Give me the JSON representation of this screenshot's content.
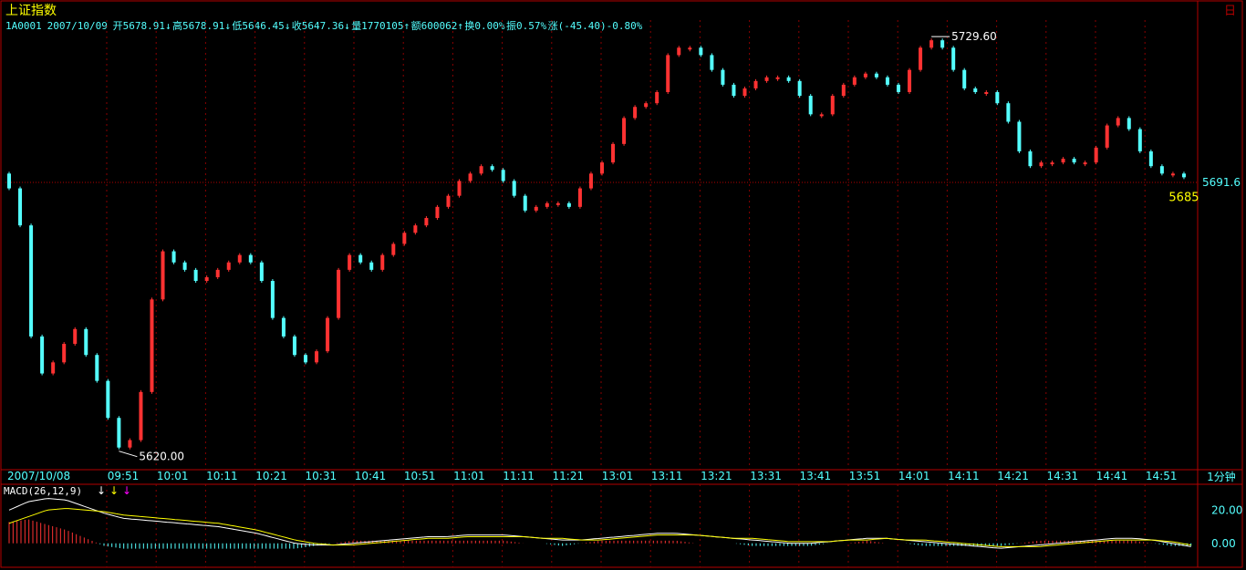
{
  "title": "上证指数",
  "corner_label": "日",
  "info": {
    "code": "1A0001",
    "date": "2007/10/09",
    "open_label": "开",
    "open": "5678.91",
    "high_label": "高",
    "high": "5678.91",
    "low_label": "低",
    "low": "5646.45",
    "close_label": "收",
    "close": "5647.36",
    "volume_label": "量",
    "volume": "1770105",
    "amount_label": "额",
    "amount": "600062",
    "turnover_label": "换",
    "turnover": "0.00%",
    "amplitude_label": "振",
    "amplitude": "0.57%",
    "change_label": "涨",
    "change": "(-45.40)-0.80%"
  },
  "price_chart": {
    "type": "candlestick",
    "high_label": "5729.60",
    "low_label": "5620.00",
    "local_low_label": "5685",
    "reference_price_label": "5691.6",
    "reference_price": 5691.6,
    "ylim": [
      5615,
      5733
    ],
    "closes": [
      5690,
      5680,
      5650,
      5640,
      5643,
      5648,
      5652,
      5645,
      5638,
      5628,
      5620,
      5622,
      5635,
      5660,
      5673,
      5670,
      5668,
      5665,
      5666,
      5668,
      5670,
      5672,
      5670,
      5665,
      5655,
      5650,
      5645,
      5643,
      5646,
      5655,
      5668,
      5672,
      5670,
      5668,
      5672,
      5675,
      5678,
      5680,
      5682,
      5685,
      5688,
      5692,
      5694,
      5696,
      5695,
      5692,
      5688,
      5684,
      5685,
      5686,
      5686,
      5685,
      5690,
      5694,
      5697,
      5702,
      5709,
      5712,
      5713,
      5716,
      5726,
      5728,
      5728,
      5726,
      5722,
      5718,
      5715,
      5717,
      5719,
      5720,
      5720,
      5719,
      5715,
      5710,
      5710,
      5715,
      5718,
      5720,
      5721,
      5720,
      5718,
      5716,
      5722,
      5728,
      5730,
      5728,
      5722,
      5717,
      5716,
      5716,
      5713,
      5708,
      5700,
      5696,
      5697,
      5697,
      5698,
      5697,
      5697,
      5701,
      5707,
      5709,
      5706,
      5700,
      5696,
      5694,
      5694,
      5693
    ],
    "times": [
      "2007/10/08",
      "09:51",
      "10:01",
      "10:11",
      "10:21",
      "10:31",
      "10:41",
      "10:51",
      "11:01",
      "11:11",
      "11:21",
      "13:01",
      "13:11",
      "13:21",
      "13:31",
      "13:41",
      "13:51",
      "14:01",
      "14:11",
      "14:21",
      "14:31",
      "14:41",
      "14:51"
    ],
    "period_label": "1分钟"
  },
  "macd": {
    "label": "MACD(26,12,9)",
    "arrow_colors": [
      "#ffffff",
      "#ffff00",
      "#ff00ff"
    ],
    "arrows": [
      "↓",
      "↓",
      "↓"
    ],
    "axis_labels": [
      "20.00",
      "0.00"
    ],
    "ylim": [
      -10,
      30
    ],
    "dif": [
      20,
      25,
      27,
      26,
      22,
      18,
      15,
      14,
      13,
      12,
      11,
      10,
      8,
      6,
      3,
      0,
      -1,
      -1,
      0,
      1,
      2,
      3,
      4,
      4,
      5,
      5,
      5,
      4,
      3,
      2,
      2,
      3,
      4,
      5,
      6,
      6,
      5,
      4,
      3,
      2,
      1,
      0,
      0,
      1,
      2,
      3,
      3,
      2,
      1,
      0,
      -1,
      -2,
      -3,
      -2,
      -1,
      0,
      1,
      2,
      3,
      3,
      2,
      0,
      -2
    ],
    "dea": [
      12,
      16,
      20,
      21,
      20,
      19,
      17,
      16,
      15,
      14,
      13,
      12,
      10,
      8,
      5,
      2,
      0,
      -1,
      -1,
      0,
      1,
      2,
      3,
      3,
      4,
      4,
      4,
      4,
      3,
      3,
      2,
      2,
      3,
      4,
      5,
      5,
      5,
      4,
      3,
      3,
      2,
      1,
      1,
      1,
      2,
      2,
      3,
      2,
      2,
      1,
      0,
      -1,
      -2,
      -2,
      -2,
      -1,
      0,
      1,
      2,
      2,
      2,
      1,
      -1
    ],
    "colors": {
      "up": "#ff3232",
      "down": "#54ffff",
      "dif": "#ffffff",
      "dea": "#ffff00"
    }
  },
  "colors": {
    "background": "#000000",
    "border": "#b40000",
    "grid": "#8b0000",
    "cyan_text": "#54ffff",
    "yellow_text": "#ffff00",
    "title_text": "#ffff00"
  }
}
